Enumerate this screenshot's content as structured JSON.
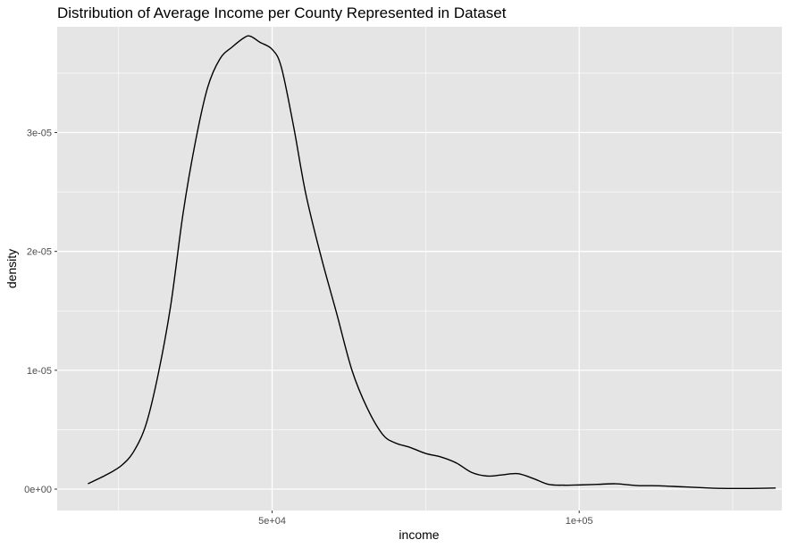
{
  "chart_data": {
    "type": "area",
    "title": "Distribution of Average Income per County Represented in Dataset",
    "xlabel": "income",
    "ylabel": "density",
    "xlim": [
      15000,
      133000
    ],
    "ylim": [
      -1.8e-06,
      3.89e-05
    ],
    "x_ticks": [
      {
        "value": 50000,
        "label": "5e+04"
      },
      {
        "value": 100000,
        "label": "1e+05"
      }
    ],
    "y_ticks": [
      {
        "value": 0,
        "label": "0e+00"
      },
      {
        "value": 1e-05,
        "label": "1e-05"
      },
      {
        "value": 2e-05,
        "label": "2e-05"
      },
      {
        "value": 3e-05,
        "label": "3e-05"
      }
    ],
    "grid": true,
    "background": "#e5e5e5",
    "grid_color": "#ffffff",
    "line_color": "#000000",
    "series": [
      {
        "x": [
          20000,
          23000,
          25500,
          27500,
          29500,
          31500,
          33500,
          35500,
          37500,
          39500,
          41500,
          43500,
          45500,
          46500,
          48000,
          50000,
          51500,
          53500,
          55500,
          58000,
          60500,
          63000,
          65500,
          68000,
          70000,
          72500,
          75000,
          77500,
          80000,
          82500,
          85000,
          87500,
          90000,
          92500,
          95000,
          97500,
          100000,
          103000,
          106000,
          109500,
          113000,
          116500,
          120000,
          123000,
          126000,
          129000,
          132000
        ],
        "y": [
          4.5e-07,
          1.2e-06,
          2e-06,
          3.2e-06,
          5.5e-06,
          9.8e-06,
          1.55e-05,
          2.32e-05,
          2.92e-05,
          3.38e-05,
          3.62e-05,
          3.72e-05,
          3.8e-05,
          3.81e-05,
          3.76e-05,
          3.7e-05,
          3.55e-05,
          3.05e-05,
          2.48e-05,
          1.95e-05,
          1.48e-05,
          1e-05,
          6.8e-06,
          4.6e-06,
          3.9e-06,
          3.5e-06,
          3e-06,
          2.7e-06,
          2.2e-06,
          1.4e-06,
          1.1e-06,
          1.2e-06,
          1.3e-06,
          9e-07,
          4e-07,
          3.3e-07,
          3.5e-07,
          4e-07,
          4.5e-07,
          3e-07,
          2.8e-07,
          2e-07,
          1.2e-07,
          6e-08,
          5e-08,
          6e-08,
          9e-08
        ]
      }
    ]
  }
}
